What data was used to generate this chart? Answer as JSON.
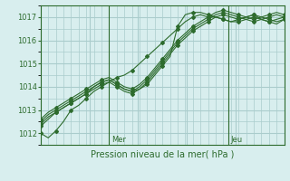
{
  "title": "Pression niveau de la mer( hPa )",
  "bg_color": "#d8eeee",
  "grid_color": "#aacccc",
  "line_color": "#2d6b2d",
  "marker_color": "#2d6b2d",
  "ylim": [
    1011.5,
    1017.5
  ],
  "yticks": [
    1012,
    1013,
    1014,
    1015,
    1016,
    1017
  ],
  "day_labels": [
    "Mer",
    "Jeu"
  ],
  "day_positions": [
    0.28,
    0.77
  ],
  "series": [
    [
      1012.0,
      1011.8,
      1012.1,
      1012.5,
      1013.0,
      1013.2,
      1013.5,
      1013.8,
      1014.0,
      1014.2,
      1014.4,
      1014.5,
      1014.7,
      1015.0,
      1015.3,
      1015.6,
      1015.9,
      1016.2,
      1016.5,
      1016.8,
      1017.0,
      1017.1,
      1017.0,
      1017.0,
      1016.9,
      1016.8,
      1016.8,
      1016.9,
      1017.0,
      1016.9,
      1016.8,
      1016.7,
      1016.9
    ],
    [
      1012.3,
      1012.6,
      1012.9,
      1013.1,
      1013.3,
      1013.5,
      1013.7,
      1014.0,
      1014.2,
      1014.3,
      1014.1,
      1013.9,
      1013.8,
      1013.9,
      1014.1,
      1014.5,
      1014.9,
      1015.3,
      1016.6,
      1017.1,
      1017.2,
      1017.2,
      1017.1,
      1017.0,
      1016.9,
      1016.8,
      1016.9,
      1017.0,
      1017.1,
      1017.0,
      1016.9,
      1016.8,
      1016.9
    ],
    [
      1012.4,
      1012.7,
      1012.9,
      1013.1,
      1013.3,
      1013.5,
      1013.7,
      1013.9,
      1014.1,
      1014.2,
      1014.0,
      1013.8,
      1013.7,
      1013.9,
      1014.2,
      1014.6,
      1015.0,
      1015.4,
      1015.8,
      1016.1,
      1016.4,
      1016.6,
      1016.8,
      1017.0,
      1017.1,
      1017.0,
      1016.9,
      1017.0,
      1017.1,
      1016.9,
      1016.8,
      1016.9,
      1017.0
    ],
    [
      1012.5,
      1012.8,
      1013.0,
      1013.2,
      1013.4,
      1013.6,
      1013.8,
      1014.0,
      1014.2,
      1014.3,
      1014.1,
      1013.9,
      1013.8,
      1014.0,
      1014.3,
      1014.7,
      1015.1,
      1015.5,
      1015.9,
      1016.2,
      1016.5,
      1016.7,
      1016.9,
      1017.1,
      1017.2,
      1017.1,
      1017.0,
      1016.9,
      1016.8,
      1016.9,
      1017.0,
      1017.1,
      1017.0
    ],
    [
      1012.6,
      1012.9,
      1013.1,
      1013.3,
      1013.5,
      1013.7,
      1013.9,
      1014.1,
      1014.3,
      1014.4,
      1014.2,
      1014.0,
      1013.9,
      1014.1,
      1014.4,
      1014.8,
      1015.2,
      1015.6,
      1016.0,
      1016.3,
      1016.6,
      1016.8,
      1017.0,
      1017.2,
      1017.3,
      1017.2,
      1017.1,
      1017.0,
      1016.9,
      1017.0,
      1017.1,
      1017.2,
      1017.1
    ]
  ]
}
